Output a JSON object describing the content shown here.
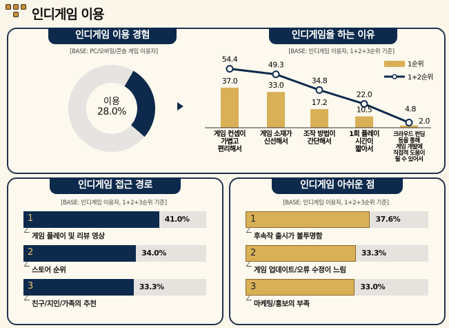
{
  "header": {
    "title": "인디게임 이용",
    "logo_icon": "game-controller-blocks-icon"
  },
  "colors": {
    "navy": "#0d2a4c",
    "gold": "#d9b057",
    "track": "#e6e3df",
    "donut_rest": "#e6e4e1"
  },
  "chart_data": [
    {
      "type": "pie",
      "variant": "donut",
      "title": "인디게임 이용 경험",
      "subtitle": "[BASE: PC/모바일/콘솔 게임 이용자]",
      "center_label": "이용",
      "center_value": "28.0%",
      "values": [
        28.0,
        72.0
      ],
      "highlight": "이용"
    },
    {
      "type": "bar",
      "title": "인디게임을 하는 이유",
      "subtitle": "[BASE: 인디게임 이용자, 1+2+3순위 기준]",
      "categories": [
        "게임 컨셉이\n가볍고\n편리해서",
        "게임 소재가\n신선해서",
        "조작 방법이\n간단해서",
        "1회 플레이\n시간이\n짧아서",
        "크라우드 펀딩\n등을 통해\n게임 개발에\n직접적 도움이\n될 수 있어서"
      ],
      "series": [
        {
          "name": "1순위",
          "type": "bar",
          "values": [
            37.0,
            33.0,
            17.2,
            10.5,
            2.0
          ]
        },
        {
          "name": "1+2순위",
          "type": "line",
          "values": [
            54.4,
            49.3,
            34.8,
            22.0,
            4.8
          ]
        }
      ],
      "legend": "top-right",
      "ylim": [
        0,
        60
      ],
      "grid": false
    },
    {
      "type": "bar",
      "orientation": "horizontal",
      "title": "인디게임 접근 경로",
      "subtitle": "[BASE: 인디게임 이용자, 1+2+3순위 기준]",
      "ranks": [
        "1",
        "2",
        "3"
      ],
      "categories": [
        "게임 플레이 및 리뷰 영상",
        "스토어 순위",
        "친구/지인/가족의 추천"
      ],
      "values": [
        41.0,
        34.0,
        33.3
      ],
      "labels": [
        "41.0%",
        "34.0%",
        "33.3%"
      ],
      "color": "#0d2a4c"
    },
    {
      "type": "bar",
      "orientation": "horizontal",
      "title": "인디게임 아쉬운 점",
      "subtitle": "[BASE: 인디게임 이용자, 1+2+3순위 기준]",
      "ranks": [
        "1",
        "2",
        "3"
      ],
      "categories": [
        "후속작 출시가 불투명함",
        "게임 업데이트/오류 수정이 느림",
        "마케팅/홍보의 부족"
      ],
      "values": [
        37.6,
        33.3,
        33.0
      ],
      "labels": [
        "37.6%",
        "33.3%",
        "33.0%"
      ],
      "color": "#d9b057"
    }
  ]
}
